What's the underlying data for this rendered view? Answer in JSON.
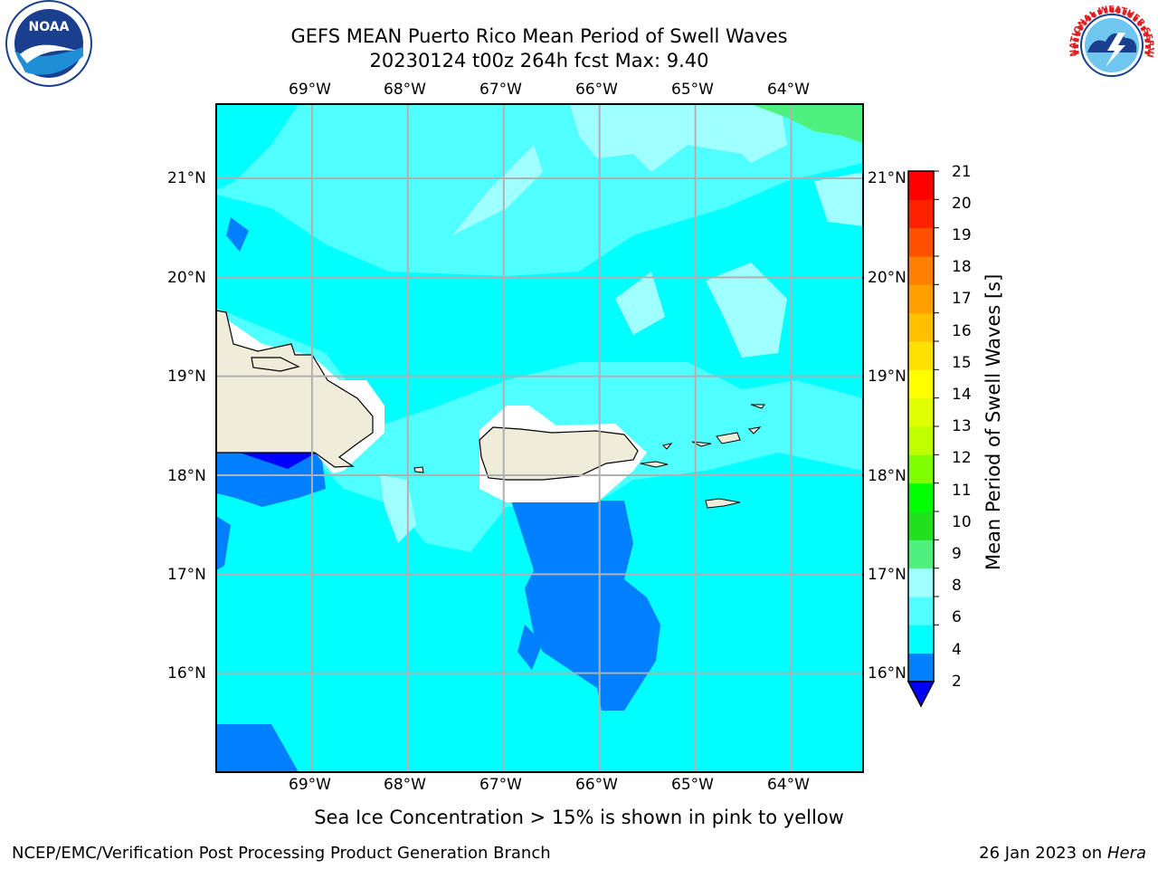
{
  "header": {
    "title_line1": "GEFS MEAN Puerto Rico Mean Period of Swell Waves",
    "title_line2": "20230124 t00z 264h fcst   Max: 9.40"
  },
  "logos": {
    "noaa_text": "NOAA",
    "nws_text": "NATIONAL WEATHER SERVICE"
  },
  "map": {
    "lon_ticks": [
      "69°W",
      "68°W",
      "67°W",
      "66°W",
      "65°W",
      "64°W"
    ],
    "lat_ticks": [
      "21°N",
      "20°N",
      "19°N",
      "18°N",
      "17°N",
      "16°N"
    ],
    "extent": {
      "lon": [
        -70.0,
        -63.25
      ],
      "lat": [
        15.0,
        21.75
      ]
    },
    "gridlines": true
  },
  "colorbar": {
    "label": "Mean Period of Swell Waves [s]",
    "tick_labels": [
      "21",
      "20",
      "19",
      "18",
      "17",
      "16",
      "15",
      "14",
      "13",
      "12",
      "11",
      "10",
      "9",
      "8",
      "6",
      "4",
      "2"
    ],
    "extend": "min",
    "under_color": "#0000ff",
    "colors_bottom_to_top": [
      "#0080ff",
      "#00ffff",
      "#50ffff",
      "#a0ffff",
      "#50f080",
      "#20e020",
      "#00ff00",
      "#80ff00",
      "#c0ff00",
      "#e0ff00",
      "#ffff00",
      "#ffe000",
      "#ffc000",
      "#ffa000",
      "#ff8000",
      "#ff5000",
      "#ff2000",
      "#ff0000"
    ]
  },
  "footer": {
    "sea_ice_note": "Sea Ice Concentration > 15% is shown in pink to yellow",
    "branch": "NCEP/EMC/Verification Post Processing Product Generation Branch",
    "date_prefix": "26 Jan 2023 on ",
    "machine": "Hera"
  }
}
